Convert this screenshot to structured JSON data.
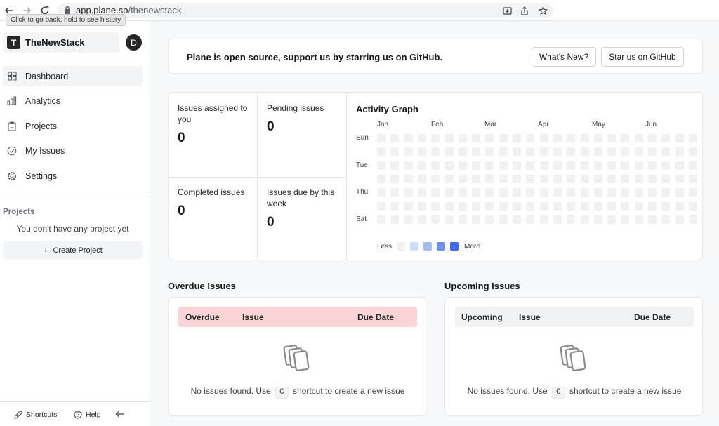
{
  "browser": {
    "url_host": "app.plane.so",
    "url_path": "/thenewstack",
    "tooltip": "Click to go back, hold to see history"
  },
  "sidebar": {
    "workspace_initial": "T",
    "workspace_name": "TheNewStack",
    "avatar_initial": "D",
    "menu": [
      {
        "label": "Dashboard",
        "icon": "grid-icon",
        "active": true
      },
      {
        "label": "Analytics",
        "icon": "bar-chart-icon"
      },
      {
        "label": "Projects",
        "icon": "clipboard-icon"
      },
      {
        "label": "My Issues",
        "icon": "check-circle-icon"
      },
      {
        "label": "Settings",
        "icon": "gear-icon"
      }
    ],
    "projects_heading": "Projects",
    "no_projects": "You don't have any project yet",
    "create_project": "Create Project",
    "footer": {
      "shortcuts": "Shortcuts",
      "help": "Help"
    }
  },
  "banner": {
    "text": "Plane is open source, support us by starring us on GitHub.",
    "whats_new": "What's New?",
    "star": "Star us on GitHub"
  },
  "stats": {
    "assigned": {
      "label": "Issues assigned to you",
      "value": "0"
    },
    "pending": {
      "label": "Pending issues",
      "value": "0"
    },
    "completed": {
      "label": "Completed issues",
      "value": "0"
    },
    "due_week": {
      "label": "Issues due by this week",
      "value": "0"
    }
  },
  "activity": {
    "title": "Activity Graph",
    "months": [
      "Jan",
      "Feb",
      "Mar",
      "Apr",
      "May",
      "Jun"
    ],
    "days": [
      "Sun",
      "Tue",
      "Thu",
      "Sat"
    ],
    "legend_less": "Less",
    "legend_more": "More",
    "legend_colors": [
      "#f1f1f3",
      "#cfdcfb",
      "#a3bcf7",
      "#6d8ff0",
      "#3f6ae9"
    ]
  },
  "overdue": {
    "title": "Overdue Issues",
    "col_status": "Overdue",
    "col_issue": "Issue",
    "col_due": "Due Date",
    "empty_prefix": "No issues found. Use",
    "key": "C",
    "empty_suffix": "shortcut to create a new issue"
  },
  "upcoming": {
    "title": "Upcoming Issues",
    "col_status": "Upcoming",
    "col_issue": "Issue",
    "col_due": "Due Date",
    "empty_prefix": "No issues found. Use",
    "key": "C",
    "empty_suffix": "shortcut to create a new issue"
  },
  "colors": {
    "overdue_header": "#fbd5d5",
    "upcoming_header": "#f1f2f4"
  }
}
